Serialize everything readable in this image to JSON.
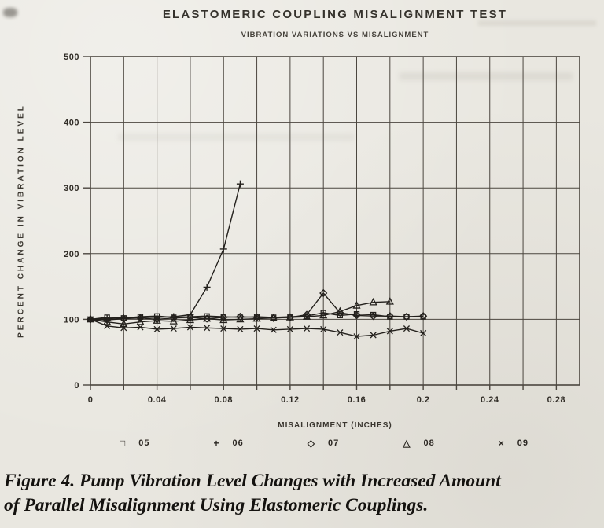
{
  "page": {
    "caption": {
      "line1": "Figure 4. Pump Vibration Level Changes with Increased Amount",
      "line2": "of Parallel Misalignment Using Elastomeric Couplings."
    }
  },
  "colors": {
    "paper": "#e9e7e0",
    "ink": "#23201c",
    "grid": "#4b463f",
    "text": "#302c26"
  },
  "chart_data": {
    "type": "line",
    "title": "ELASTOMERIC COUPLING MISALIGNMENT TEST",
    "subtitle": "VIBRATION VARIATIONS VS MISALIGNMENT",
    "xlabel": "MISALIGNMENT (INCHES)",
    "ylabel": "PERCENT CHANGE IN VIBRATION LEVEL",
    "xlim": [
      0,
      0.294
    ],
    "ylim": [
      0,
      500
    ],
    "grid": true,
    "legend_position": "bottom",
    "x_grid_interval": 0.02,
    "x_major_ticks": [
      0,
      0.04,
      0.08,
      0.12,
      0.16,
      0.2,
      0.24,
      0.28
    ],
    "x_tick_labels": [
      "0",
      "0.04",
      "0.08",
      "0.12",
      "0.16",
      "0.2",
      "0.24",
      "0.28"
    ],
    "y_ticks": [
      0,
      100,
      200,
      300,
      400,
      500
    ],
    "y_tick_labels": [
      "0",
      "100",
      "200",
      "300",
      "400",
      "500"
    ],
    "series": [
      {
        "name": "05",
        "marker": "square",
        "marker_glyph": "□",
        "x": [
          0,
          0.01,
          0.02,
          0.03,
          0.04,
          0.05,
          0.06,
          0.07,
          0.08,
          0.09,
          0.1,
          0.11,
          0.12,
          0.13,
          0.14,
          0.15,
          0.16,
          0.17,
          0.18,
          0.19,
          0.2
        ],
        "values": [
          100,
          103,
          102,
          104,
          105,
          103,
          104,
          105,
          104,
          103,
          104,
          103,
          104,
          105,
          110,
          106,
          108,
          107,
          104,
          104,
          104
        ]
      },
      {
        "name": "06",
        "marker": "plus",
        "marker_glyph": "+",
        "x": [
          0,
          0.01,
          0.02,
          0.03,
          0.04,
          0.05,
          0.06,
          0.07,
          0.08,
          0.09
        ],
        "values": [
          100,
          101,
          102,
          103,
          103,
          104,
          107,
          149,
          207,
          306
        ]
      },
      {
        "name": "07",
        "marker": "diamond",
        "marker_glyph": "◇",
        "x": [
          0,
          0.01,
          0.02,
          0.03,
          0.04,
          0.05,
          0.06,
          0.07,
          0.08,
          0.09,
          0.1,
          0.11,
          0.12,
          0.13,
          0.14,
          0.15,
          0.16,
          0.17,
          0.18,
          0.19,
          0.2
        ],
        "values": [
          100,
          99,
          101,
          102,
          100,
          102,
          103,
          101,
          103,
          104,
          103,
          102,
          103,
          107,
          140,
          110,
          106,
          105,
          105,
          104,
          105
        ]
      },
      {
        "name": "08",
        "marker": "triangle",
        "marker_glyph": "△",
        "x": [
          0,
          0.01,
          0.02,
          0.03,
          0.04,
          0.05,
          0.06,
          0.07,
          0.08,
          0.09,
          0.1,
          0.11,
          0.12,
          0.13,
          0.14,
          0.15,
          0.16,
          0.17,
          0.18
        ],
        "values": [
          100,
          96,
          93,
          96,
          98,
          97,
          99,
          101,
          99,
          100,
          101,
          102,
          103,
          104,
          106,
          112,
          121,
          126,
          127
        ]
      },
      {
        "name": "09",
        "marker": "x",
        "marker_glyph": "×",
        "x": [
          0,
          0.01,
          0.02,
          0.03,
          0.04,
          0.05,
          0.06,
          0.07,
          0.08,
          0.09,
          0.1,
          0.11,
          0.12,
          0.13,
          0.14,
          0.15,
          0.16,
          0.17,
          0.18,
          0.19,
          0.2
        ],
        "values": [
          100,
          90,
          87,
          88,
          85,
          86,
          88,
          87,
          86,
          85,
          86,
          84,
          85,
          86,
          85,
          80,
          74,
          76,
          82,
          86,
          79
        ]
      }
    ]
  }
}
